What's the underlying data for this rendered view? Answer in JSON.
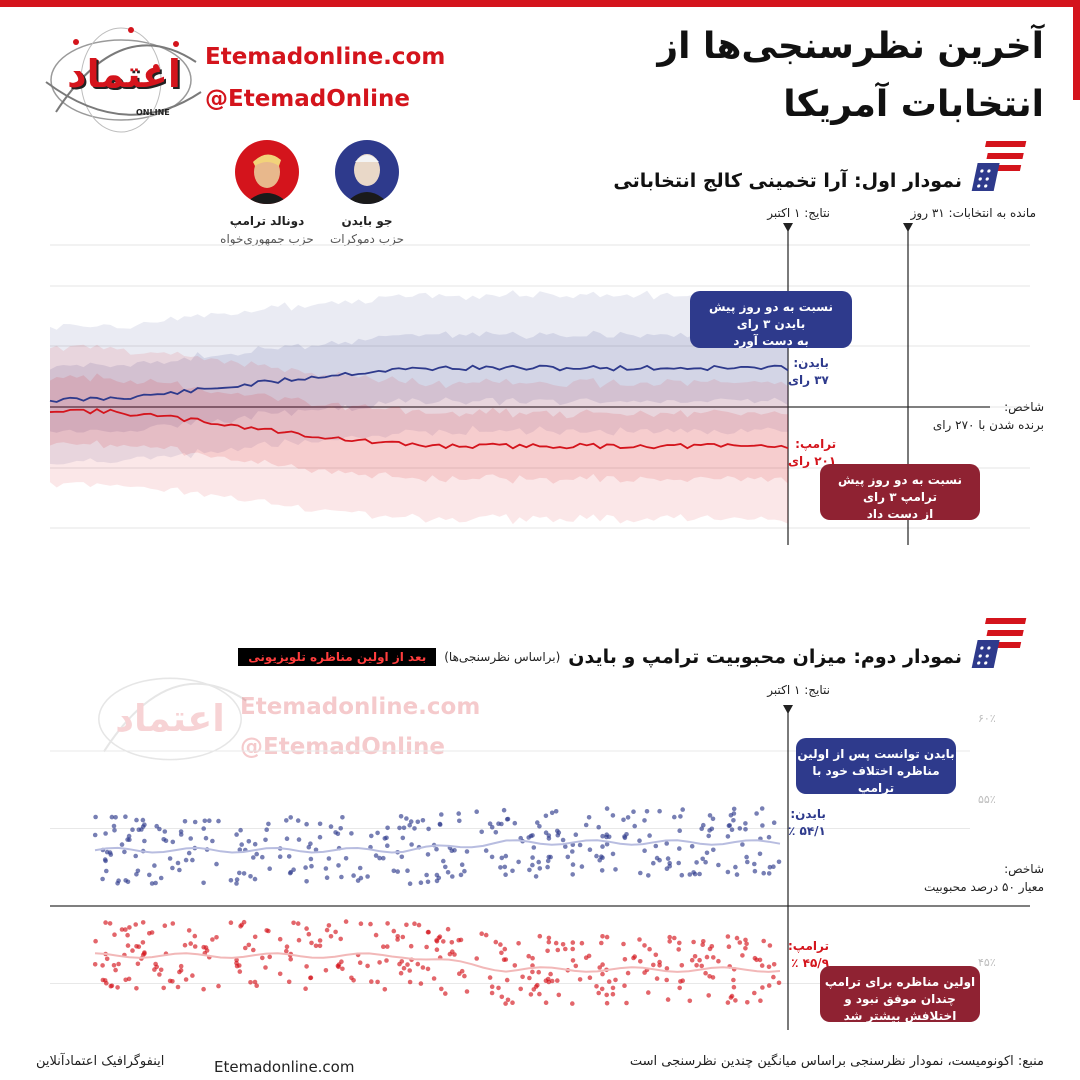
{
  "header": {
    "title_line1": "آخرین نظرسنجی‌ها از",
    "title_line2": "انتخابات آمریکا",
    "site": "Etemadonline.com",
    "handle": "@EtemadOnline",
    "logo_text": "اعتماد",
    "logo_sub": "ONLINE"
  },
  "candidates": [
    {
      "name": "جو بایدن",
      "party": "حزب دموکرات",
      "color": "#2e3a8c",
      "icon": "biden-avatar"
    },
    {
      "name": "دونالد ترامپ",
      "party": "حزب جمهوری‌خواه",
      "color": "#d4141c",
      "icon": "trump-avatar"
    }
  ],
  "chart1": {
    "title": "نمودار اول: آرا تخمینی کالج انتخاباتی",
    "days_left": "مانده به انتخابات: ۳۱ روز",
    "results_date": "نتایج: ۱ اکتبر",
    "threshold_label_1": "شاخص:",
    "threshold_label_2": "برنده شدن با ۲۷۰ رای",
    "biden_end_1": "بایدن:",
    "biden_end_2": "۳۷ رای",
    "trump_end_1": "ترامپ:",
    "trump_end_2": "۲۰۱ رای",
    "biden_callout": [
      "نسبت به دو روز پیش",
      "بایدن ۳ رای",
      "به دست آورد"
    ],
    "trump_callout": [
      "نسبت به دو روز پیش",
      "ترامپ ۳ رای",
      "از دست داد"
    ]
  },
  "chart2": {
    "title": "نمودار دوم: میزان محبوبیت ترامپ و بایدن",
    "subtitle": "(براساس نظرسنجی‌ها)",
    "badge": "بعد از اولین مناظره تلویزیونی",
    "results_date": "نتایج: ۱ اکتبر",
    "threshold_label_1": "شاخص:",
    "threshold_label_2": "معیار ۵۰ درصد محبوبیت",
    "biden_end_1": "بایدن:",
    "biden_end_2": "۵۴/۱ ٪",
    "trump_end_1": "ترامپ:",
    "trump_end_2": "۴۵/۹ ٪",
    "ticks": [
      "۶۰٪",
      "۵۵٪",
      "۴۵٪"
    ],
    "biden_callout": [
      "بایدن توانست پس از اولین",
      "مناظره اختلاف خود با ترامپ",
      "را بیشتر کند"
    ],
    "trump_callout": [
      "اولین مناظره برای ترامپ",
      "چندان موفق نبود و",
      "اختلافش بیشتر شد"
    ]
  },
  "footer": {
    "credit": "اینفوگرافیک اعتمادآنلاین",
    "site": "Etemadonline.com",
    "source": "منبع: اکونومیست، نمودار نظرسنجی براساس میانگین چندین نظرسنجی است"
  },
  "chart_data": [
    {
      "type": "line",
      "title": "نمودار اول: آرا تخمینی کالج انتخاباتی",
      "series": [
        {
          "name": "بایدن",
          "color": "#2e3a8c",
          "end_label": "۳۷ رای"
        },
        {
          "name": "ترامپ",
          "color": "#d4141c",
          "end_label": "۲۰۱ رای"
        }
      ],
      "reference_line": "شاخص: برنده شدن با ۲۷۰ رای",
      "grid": true
    },
    {
      "type": "scatter",
      "title": "نمودار دوم: میزان محبوبیت ترامپ و بایدن",
      "ylim": [
        42,
        62
      ],
      "yticks": [
        60,
        55,
        45
      ],
      "series": [
        {
          "name": "بایدن",
          "color": "#2e3a8c",
          "final": 54.1
        },
        {
          "name": "ترامپ",
          "color": "#d4141c",
          "final": 45.9
        }
      ],
      "reference_line": 50,
      "grid": true
    }
  ]
}
